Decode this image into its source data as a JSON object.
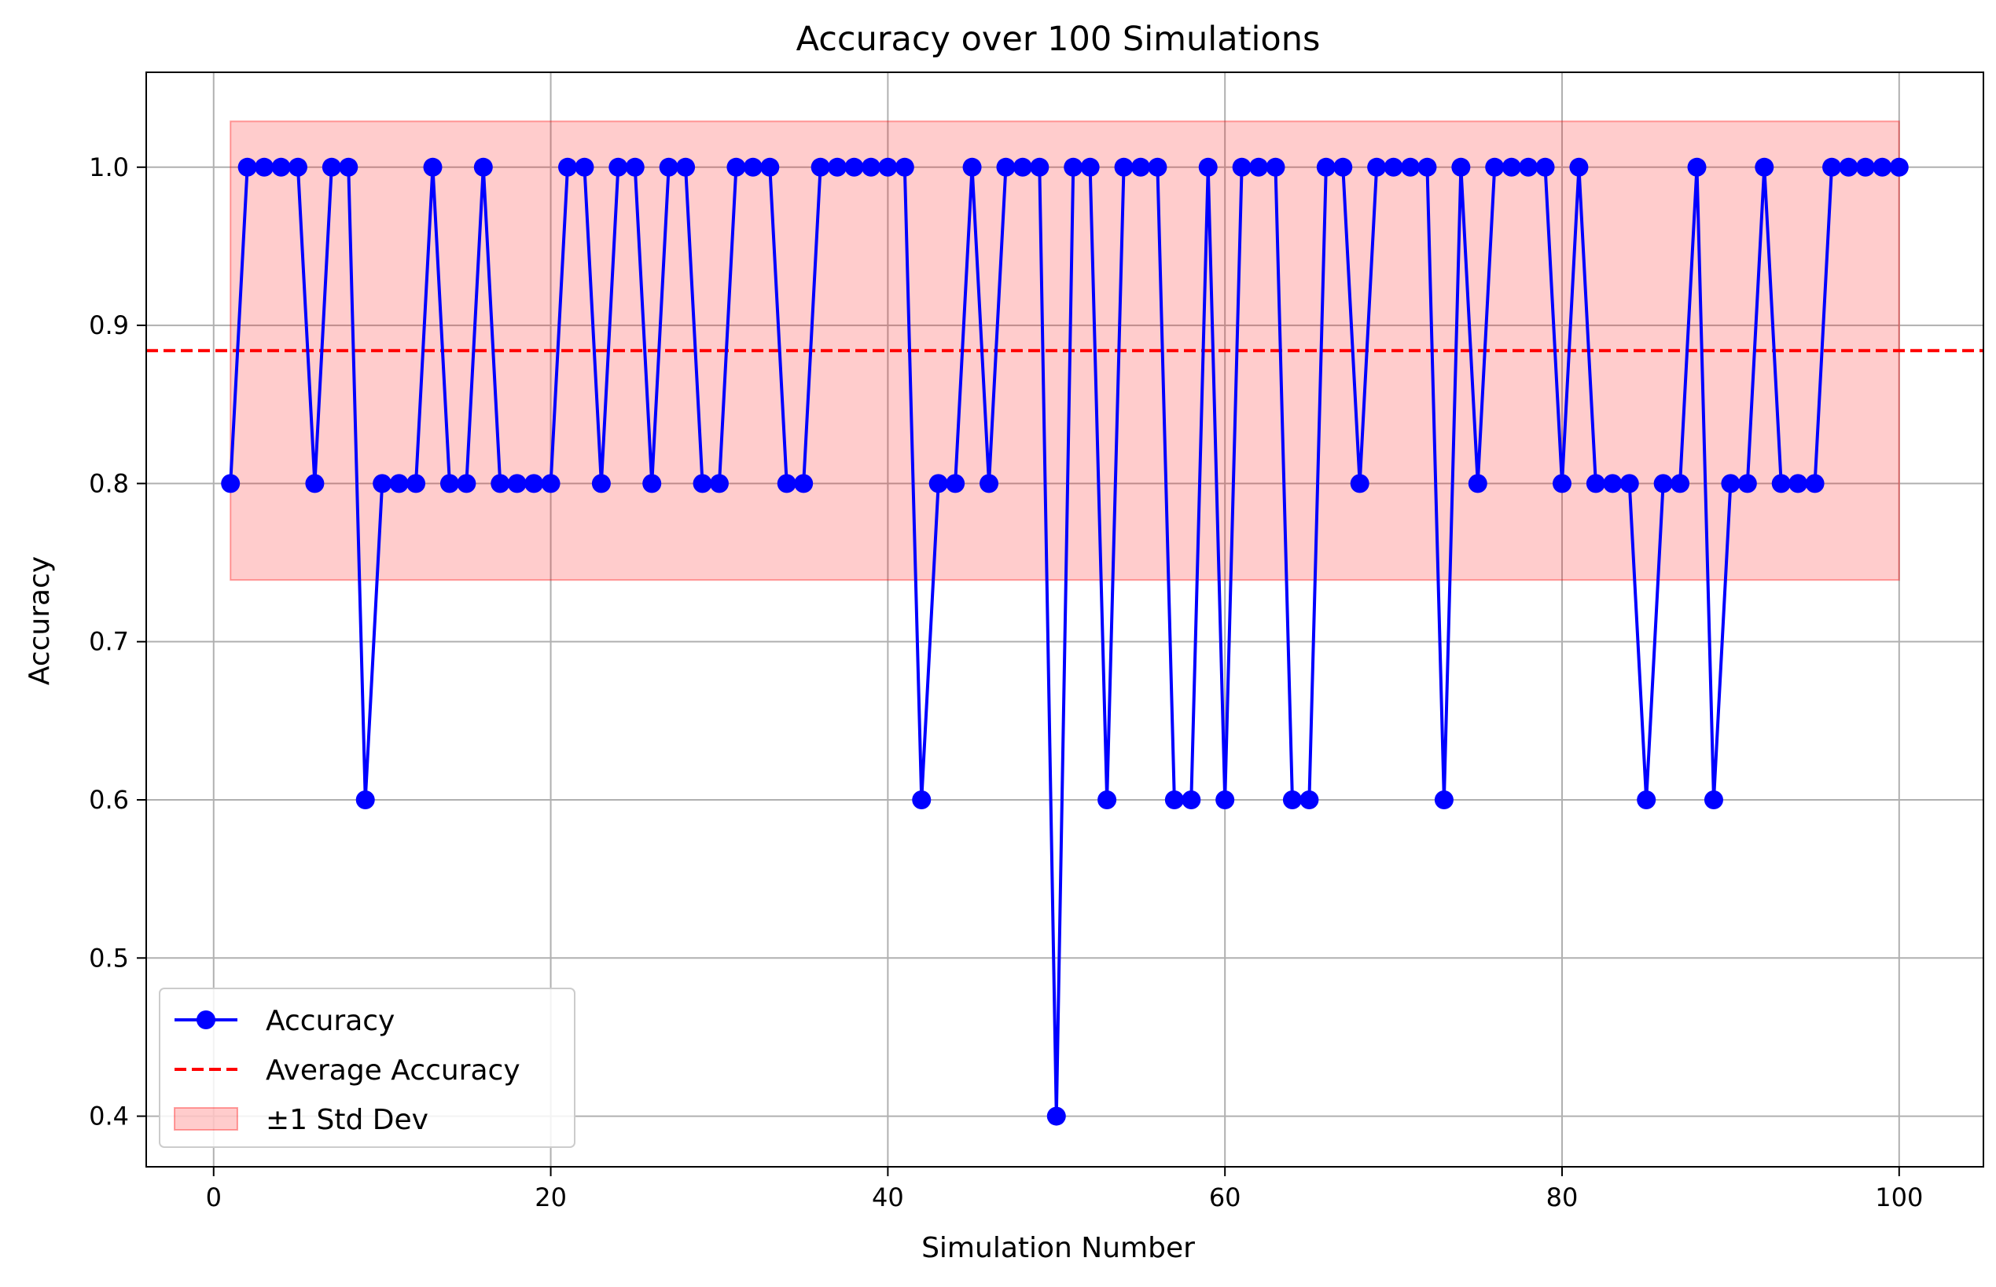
{
  "chart_data": {
    "type": "line",
    "title": "Accuracy over 100 Simulations",
    "xlabel": "Simulation Number",
    "ylabel": "Accuracy",
    "xlim": [
      -4,
      105
    ],
    "ylim": [
      0.368,
      1.06
    ],
    "xticks": [
      0,
      20,
      40,
      60,
      80,
      100
    ],
    "yticks": [
      0.4,
      0.5,
      0.6,
      0.7,
      0.8,
      0.9,
      1.0
    ],
    "xtick_labels": [
      "0",
      "20",
      "40",
      "60",
      "80",
      "100"
    ],
    "ytick_labels": [
      "0.4",
      "0.5",
      "0.6",
      "0.7",
      "0.8",
      "0.9",
      "1.0"
    ],
    "grid": true,
    "legend_position": "lower-left",
    "series": [
      {
        "name": "Accuracy",
        "kind": "line-marker",
        "color": "#0000ff",
        "x": [
          1,
          2,
          3,
          4,
          5,
          6,
          7,
          8,
          9,
          10,
          11,
          12,
          13,
          14,
          15,
          16,
          17,
          18,
          19,
          20,
          21,
          22,
          23,
          24,
          25,
          26,
          27,
          28,
          29,
          30,
          31,
          32,
          33,
          34,
          35,
          36,
          37,
          38,
          39,
          40,
          41,
          42,
          43,
          44,
          45,
          46,
          47,
          48,
          49,
          50,
          51,
          52,
          53,
          54,
          55,
          56,
          57,
          58,
          59,
          60,
          61,
          62,
          63,
          64,
          65,
          66,
          67,
          68,
          69,
          70,
          71,
          72,
          73,
          74,
          75,
          76,
          77,
          78,
          79,
          80,
          81,
          82,
          83,
          84,
          85,
          86,
          87,
          88,
          89,
          90,
          91,
          92,
          93,
          94,
          95,
          96,
          97,
          98,
          99,
          100
        ],
        "values": [
          0.8,
          1.0,
          1.0,
          1.0,
          1.0,
          0.8,
          1.0,
          1.0,
          0.6,
          0.8,
          0.8,
          0.8,
          1.0,
          0.8,
          0.8,
          1.0,
          0.8,
          0.8,
          0.8,
          0.8,
          1.0,
          1.0,
          0.8,
          1.0,
          1.0,
          0.8,
          1.0,
          1.0,
          0.8,
          0.8,
          1.0,
          1.0,
          1.0,
          0.8,
          0.8,
          1.0,
          1.0,
          1.0,
          1.0,
          1.0,
          1.0,
          0.6,
          0.8,
          0.8,
          1.0,
          0.8,
          1.0,
          1.0,
          1.0,
          0.4,
          1.0,
          1.0,
          0.6,
          1.0,
          1.0,
          1.0,
          0.6,
          0.6,
          1.0,
          0.6,
          1.0,
          1.0,
          1.0,
          0.6,
          0.6,
          1.0,
          1.0,
          0.8,
          1.0,
          1.0,
          1.0,
          1.0,
          0.6,
          1.0,
          0.8,
          1.0,
          1.0,
          1.0,
          1.0,
          0.8,
          1.0,
          0.8,
          0.8,
          0.8,
          0.6,
          0.8,
          0.8,
          1.0,
          0.6,
          0.8,
          0.8,
          1.0,
          0.8,
          0.8,
          0.8,
          1.0,
          1.0,
          1.0,
          1.0,
          1.0
        ]
      },
      {
        "name": "Average Accuracy",
        "kind": "hline-dashed",
        "color": "#ff0000",
        "value": 0.884
      },
      {
        "name": "±1 Std Dev",
        "kind": "band",
        "color": "#ff0000",
        "opacity": 0.2,
        "x_range": [
          1,
          100
        ],
        "lower": 0.739,
        "upper": 1.029
      }
    ]
  }
}
